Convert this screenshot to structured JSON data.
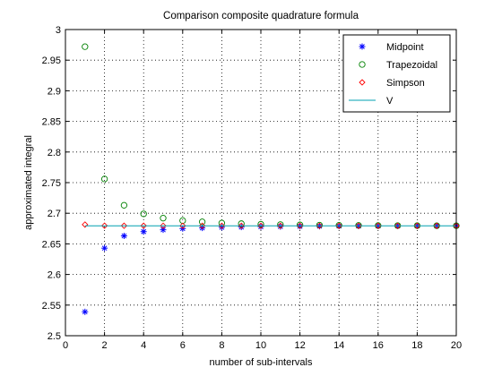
{
  "chart_data": {
    "type": "scatter",
    "title": "Comparison composite quadrature formula",
    "xlabel": "number of sub-intervals",
    "ylabel": "approximated integral",
    "xlim": [
      0,
      20
    ],
    "ylim": [
      2.5,
      3.0
    ],
    "xticks": [
      0,
      2,
      4,
      6,
      8,
      10,
      12,
      14,
      16,
      18,
      20
    ],
    "xtick_labels": [
      "0",
      "2",
      "4",
      "6",
      "8",
      "10",
      "12",
      "14",
      "16",
      "18",
      "20"
    ],
    "yticks": [
      2.5,
      2.55,
      2.6,
      2.65,
      2.7,
      2.75,
      2.8,
      2.85,
      2.9,
      2.95,
      3.0
    ],
    "ytick_labels": [
      "2.5",
      "2.55",
      "2.6",
      "2.65",
      "2.7",
      "2.75",
      "2.8",
      "2.85",
      "2.9",
      "2.95",
      "3"
    ],
    "grid": true,
    "legend_position": "top-right",
    "x": [
      1,
      2,
      3,
      4,
      5,
      6,
      7,
      8,
      9,
      10,
      11,
      12,
      13,
      14,
      15,
      16,
      17,
      18,
      19,
      20
    ],
    "series": [
      {
        "name": "Midpoint",
        "marker": "asterisk",
        "color": "#0000ff",
        "values": [
          2.539,
          2.643,
          2.663,
          2.67,
          2.673,
          2.675,
          2.676,
          2.677,
          2.6775,
          2.678,
          2.6783,
          2.6786,
          2.6788,
          2.679,
          2.6791,
          2.6792,
          2.6793,
          2.6794,
          2.6795,
          2.6796
        ]
      },
      {
        "name": "Trapezoidal",
        "marker": "circle",
        "color": "#008000",
        "values": [
          2.972,
          2.756,
          2.713,
          2.699,
          2.692,
          2.688,
          2.686,
          2.684,
          2.683,
          2.682,
          2.6815,
          2.681,
          2.6806,
          2.6803,
          2.6801,
          2.6799,
          2.6798,
          2.6797,
          2.6796,
          2.6796
        ]
      },
      {
        "name": "Simpson",
        "marker": "diamond",
        "color": "#ff0000",
        "values": [
          2.6815,
          2.6797,
          2.6796,
          2.6796,
          2.6795,
          2.6795,
          2.6795,
          2.6795,
          2.6795,
          2.6795,
          2.6795,
          2.6795,
          2.6795,
          2.6795,
          2.6795,
          2.6795,
          2.6795,
          2.6795,
          2.6795,
          2.6795
        ]
      },
      {
        "name": "V",
        "marker": "line",
        "color": "#00a0b0",
        "values": [
          2.6795,
          2.6795
        ]
      }
    ]
  }
}
